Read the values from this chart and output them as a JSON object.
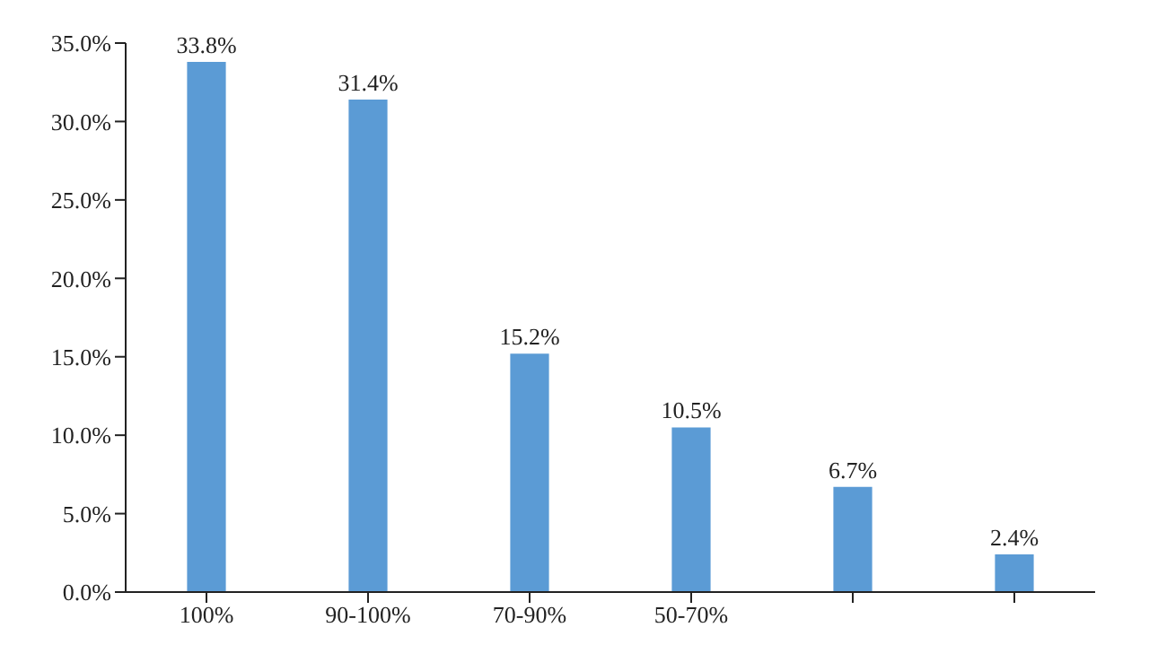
{
  "chart_data": {
    "type": "bar",
    "categories": [
      "100%",
      "90-100%",
      "70-90%",
      "50-70%",
      null,
      null
    ],
    "values": [
      33.8,
      31.4,
      15.2,
      10.5,
      6.7,
      2.4
    ],
    "value_labels": [
      "33.8%",
      "31.4%",
      "15.2%",
      "10.5%",
      "6.7%",
      "2.4%"
    ],
    "color": "#5b9bd5",
    "ylim": [
      0,
      35
    ],
    "yticks": [
      {
        "value": 0,
        "label": "0.0%"
      },
      {
        "value": 5,
        "label": "5.0%"
      },
      {
        "value": 10,
        "label": "10.0%"
      },
      {
        "value": 15,
        "label": "15.0%"
      },
      {
        "value": 20,
        "label": "20.0%"
      },
      {
        "value": 25,
        "label": "25.0%"
      },
      {
        "value": 30,
        "label": "30.0%"
      },
      {
        "value": 35,
        "label": "35.0%"
      }
    ],
    "grid": false,
    "legend": false
  }
}
